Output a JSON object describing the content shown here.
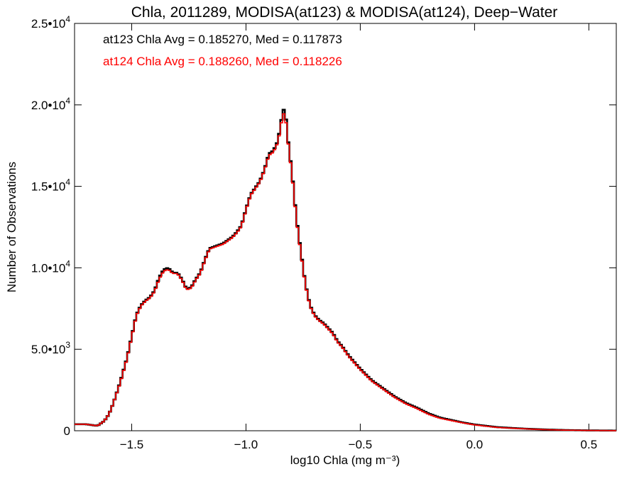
{
  "chart_data": {
    "type": "line",
    "title": "Chla, 2011289, MODISA(at123) & MODISA(at124), Deep−Water",
    "xlabel": "log10 Chla (mg m⁻³)",
    "ylabel": "Number of Observations",
    "xlim": [
      -1.75,
      0.62
    ],
    "ylim": [
      0,
      25000
    ],
    "x_ticks": [
      -1.5,
      -1.0,
      -0.5,
      0.0,
      0.5
    ],
    "x_tick_labels": [
      "−1.5",
      "−1.0",
      "−0.5",
      "0.0",
      "0.5"
    ],
    "y_ticks": [
      0,
      5000,
      10000,
      15000,
      20000,
      25000
    ],
    "y_tick_labels": [
      {
        "mant": "0",
        "exp": ""
      },
      {
        "mant": "5.0•10",
        "exp": "3"
      },
      {
        "mant": "1.0•10",
        "exp": "4"
      },
      {
        "mant": "1.5•10",
        "exp": "4"
      },
      {
        "mant": "2.0•10",
        "exp": "4"
      },
      {
        "mant": "2.5•10",
        "exp": "4"
      }
    ],
    "grid": false,
    "annotations": [
      {
        "text": "at123 Chla Avg = 0.185270, Med = 0.117873",
        "color": "#000000"
      },
      {
        "text": "at124 Chla Avg = 0.188260, Med = 0.118226",
        "color": "#ff0000"
      }
    ],
    "series": [
      {
        "color": "#000000",
        "x": [
          -1.75,
          -1.7,
          -1.65,
          -1.62,
          -1.6,
          -1.58,
          -1.55,
          -1.52,
          -1.5,
          -1.48,
          -1.46,
          -1.44,
          -1.42,
          -1.4,
          -1.38,
          -1.36,
          -1.34,
          -1.32,
          -1.3,
          -1.28,
          -1.26,
          -1.24,
          -1.22,
          -1.2,
          -1.18,
          -1.16,
          -1.14,
          -1.12,
          -1.1,
          -1.08,
          -1.06,
          -1.04,
          -1.02,
          -1.0,
          -0.98,
          -0.96,
          -0.94,
          -0.92,
          -0.9,
          -0.88,
          -0.86,
          -0.84,
          -0.83,
          -0.82,
          -0.81,
          -0.8,
          -0.79,
          -0.78,
          -0.76,
          -0.74,
          -0.72,
          -0.7,
          -0.68,
          -0.66,
          -0.64,
          -0.62,
          -0.6,
          -0.58,
          -0.55,
          -0.5,
          -0.45,
          -0.4,
          -0.35,
          -0.3,
          -0.25,
          -0.2,
          -0.15,
          -0.1,
          -0.05,
          0.0,
          0.05,
          0.1,
          0.2,
          0.3,
          0.4,
          0.5,
          0.62
        ],
        "y": [
          400,
          400,
          300,
          600,
          1000,
          1700,
          3000,
          4500,
          5800,
          7100,
          7700,
          8000,
          8200,
          8600,
          9400,
          9900,
          10000,
          9700,
          9700,
          9300,
          8700,
          8800,
          9300,
          9700,
          10500,
          11200,
          11300,
          11400,
          11500,
          11700,
          11900,
          12200,
          12600,
          13600,
          14500,
          14900,
          15300,
          16000,
          17000,
          17200,
          17800,
          19500,
          19900,
          18300,
          17100,
          16000,
          14600,
          13100,
          11000,
          9000,
          7700,
          7100,
          6800,
          6600,
          6300,
          6000,
          5500,
          5200,
          4600,
          3800,
          3100,
          2600,
          2100,
          1700,
          1400,
          1050,
          800,
          650,
          500,
          380,
          300,
          220,
          140,
          80,
          40,
          20,
          10
        ]
      },
      {
        "color": "#ff0000",
        "x": [
          -1.75,
          -1.7,
          -1.65,
          -1.62,
          -1.6,
          -1.58,
          -1.55,
          -1.52,
          -1.5,
          -1.48,
          -1.46,
          -1.44,
          -1.42,
          -1.4,
          -1.38,
          -1.36,
          -1.34,
          -1.32,
          -1.3,
          -1.28,
          -1.26,
          -1.24,
          -1.22,
          -1.2,
          -1.18,
          -1.16,
          -1.14,
          -1.12,
          -1.1,
          -1.08,
          -1.06,
          -1.04,
          -1.02,
          -1.0,
          -0.98,
          -0.96,
          -0.94,
          -0.92,
          -0.9,
          -0.88,
          -0.86,
          -0.84,
          -0.83,
          -0.82,
          -0.81,
          -0.8,
          -0.79,
          -0.78,
          -0.76,
          -0.74,
          -0.72,
          -0.7,
          -0.68,
          -0.66,
          -0.64,
          -0.62,
          -0.6,
          -0.58,
          -0.55,
          -0.5,
          -0.45,
          -0.4,
          -0.35,
          -0.3,
          -0.25,
          -0.2,
          -0.15,
          -0.1,
          -0.05,
          0.0,
          0.05,
          0.1,
          0.2,
          0.3,
          0.4,
          0.5,
          0.62
        ],
        "y": [
          400,
          400,
          300,
          600,
          1000,
          1700,
          2950,
          4450,
          5750,
          7050,
          7650,
          7950,
          8150,
          8550,
          9300,
          9800,
          9900,
          9650,
          9650,
          9250,
          8650,
          8750,
          9250,
          9650,
          10450,
          11150,
          11250,
          11350,
          11450,
          11650,
          11850,
          12150,
          12550,
          13550,
          14450,
          14850,
          15250,
          15950,
          16900,
          17100,
          17700,
          19300,
          19600,
          18200,
          17000,
          15900,
          14500,
          13000,
          10900,
          8950,
          7650,
          7050,
          6750,
          6550,
          6250,
          5950,
          5450,
          5150,
          4550,
          3750,
          3050,
          2550,
          2050,
          1650,
          1350,
          1000,
          760,
          620,
          480,
          360,
          280,
          200,
          130,
          70,
          35,
          18,
          8
        ]
      }
    ]
  }
}
